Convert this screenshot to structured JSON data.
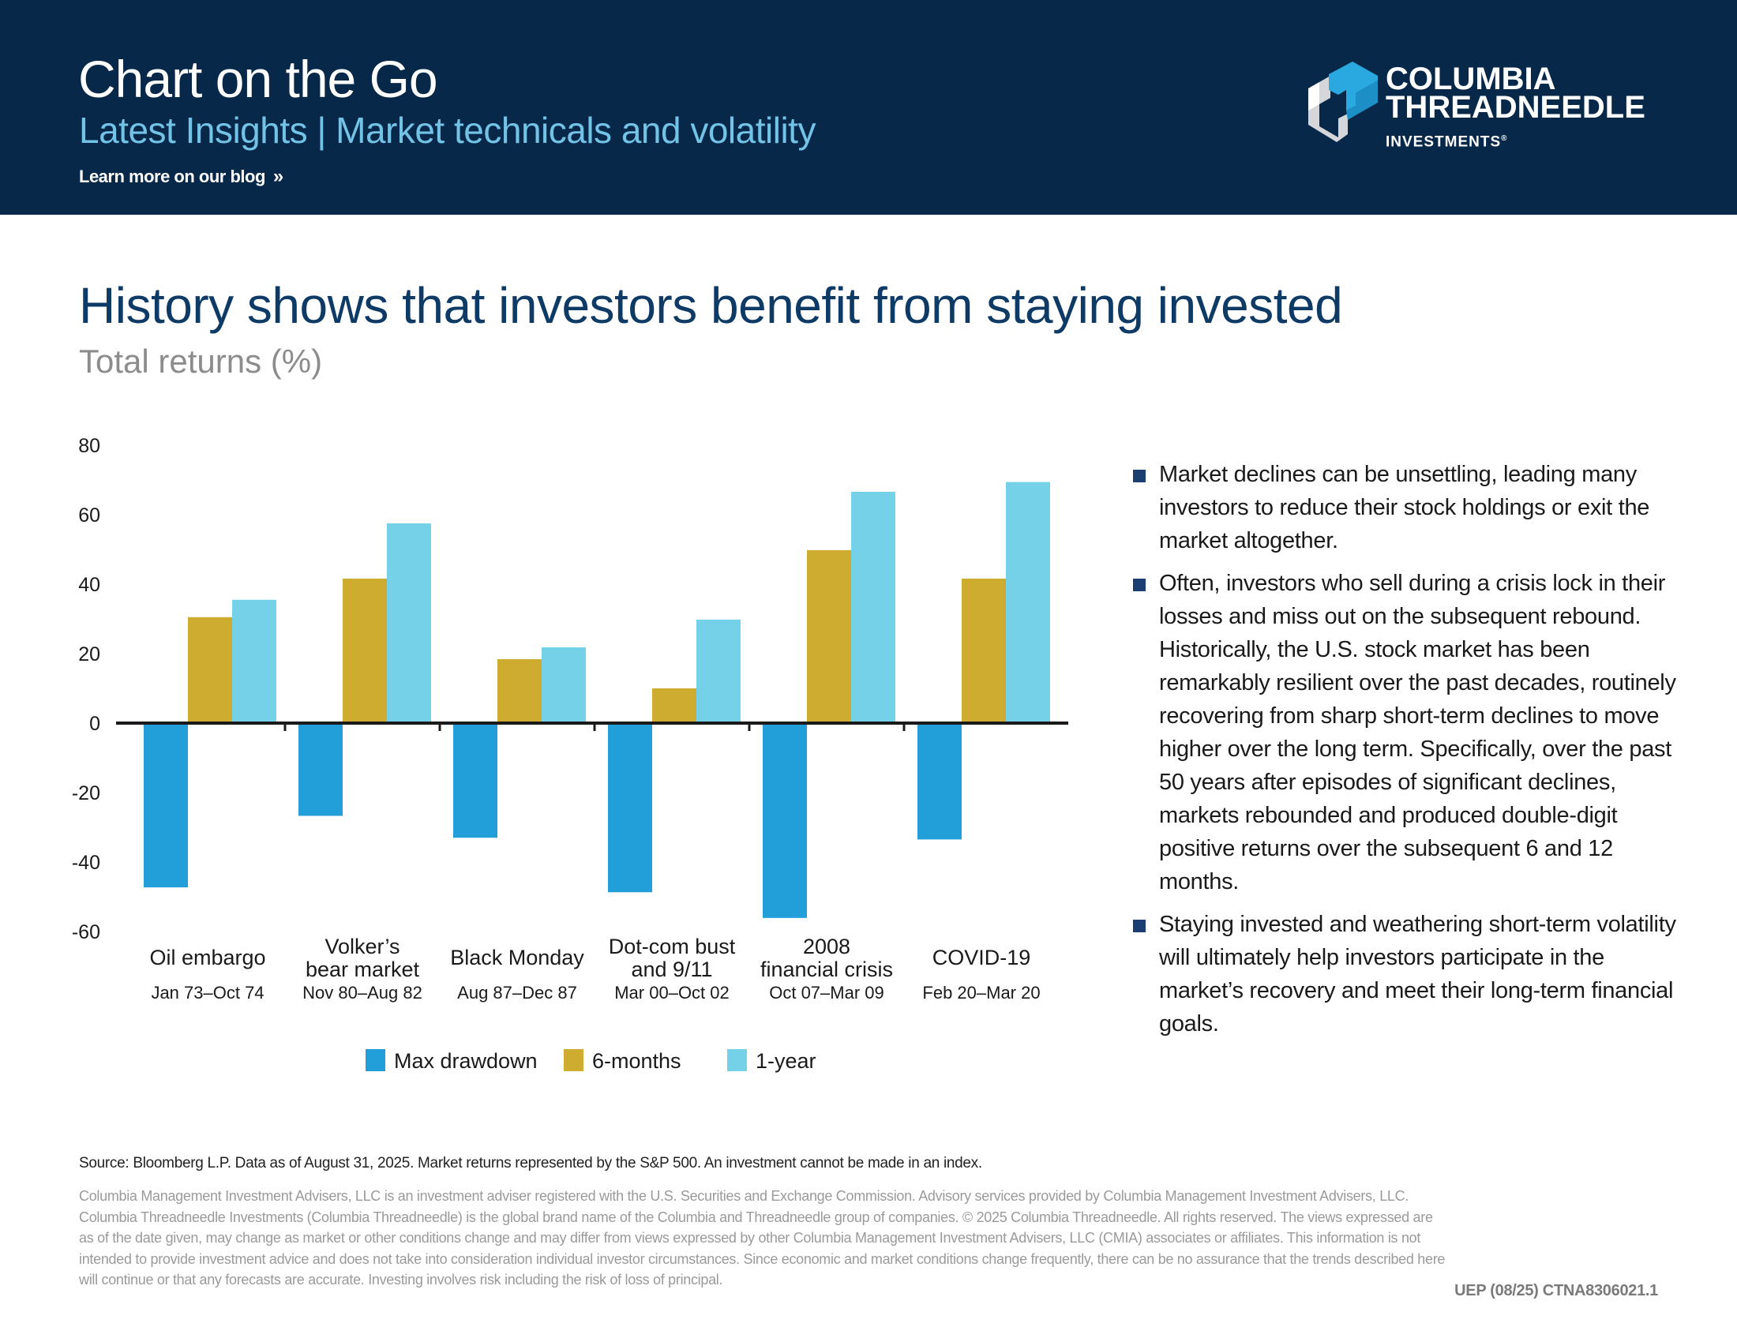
{
  "header": {
    "title": "Chart on the Go",
    "subtitle": "Latest Insights | Market technicals and volatility",
    "blog_link": "Learn more on our blog",
    "blog_link_icon": "»",
    "logo": {
      "line1": "COLUMBIA",
      "line2": "THREADNEEDLE",
      "line3": "INVESTMENTS",
      "registered": "®"
    }
  },
  "colors": {
    "header_bg": "#08284a",
    "subtitle": "#72c3e6",
    "title": "#0e3a66",
    "max_drawdown": "#229fd9",
    "six_months": "#ceac2f",
    "one_year": "#74d1e8",
    "bullet": "#1b3f73"
  },
  "main": {
    "title": "History shows that investors benefit from staying invested",
    "subtitle": "Total returns (%)"
  },
  "chart_data": {
    "type": "bar",
    "title": "History shows that investors benefit from staying invested",
    "ylabel": "Total returns (%)",
    "xlabel": "",
    "ylim": [
      -60,
      80
    ],
    "yticks": [
      80,
      60,
      40,
      20,
      0,
      -20,
      -40,
      -60
    ],
    "grid": false,
    "legend_position": "bottom-center",
    "categories": [
      {
        "name": [
          "Oil embargo"
        ],
        "period": "Jan 73–Oct 74"
      },
      {
        "name": [
          "Volker’s",
          "bear market"
        ],
        "period": "Nov 80–Aug 82"
      },
      {
        "name": [
          "Black Monday"
        ],
        "period": "Aug 87–Dec 87"
      },
      {
        "name": [
          "Dot-com bust",
          "and 9/11"
        ],
        "period": "Mar 00–Oct 02"
      },
      {
        "name": [
          "2008",
          "financial crisis"
        ],
        "period": "Oct 07–Mar 09"
      },
      {
        "name": [
          "COVID-19"
        ],
        "period": "Feb 20–Mar 20"
      }
    ],
    "series": [
      {
        "name": "Max drawdown",
        "color": "#229fd9",
        "values": [
          -47.3,
          -26.7,
          -33.0,
          -48.7,
          -56.1,
          -33.5
        ]
      },
      {
        "name": "6-months",
        "color": "#ceac2f",
        "values": [
          30.5,
          41.6,
          18.4,
          10.0,
          49.8,
          41.6
        ]
      },
      {
        "name": "1-year",
        "color": "#74d1e8",
        "values": [
          35.5,
          57.5,
          21.8,
          29.8,
          66.6,
          69.4
        ]
      }
    ]
  },
  "bullets": [
    "Market declines can be unsettling, leading many investors to reduce their stock holdings or exit the market altogether.",
    "Often, investors who sell during a crisis lock in their losses and miss out on the subsequent rebound. Historically, the U.S. stock market has been remarkably resilient over the past decades, routinely recovering from sharp short-term declines to move higher over the long term. Specifically, over the past 50 years after episodes of significant declines, markets rebounded and produced double-digit positive returns over the subsequent 6 and 12 months.",
    "Staying invested and weathering short-term volatility will ultimately help investors participate in the market’s recovery and meet their long-term financial goals."
  ],
  "footer": {
    "source": "Source: Bloomberg L.P. Data as of August 31, 2025. Market returns represented by the S&P 500. An investment cannot be made in an index.",
    "disclaimer_lines": [
      "Columbia Management Investment Advisers, LLC is an investment adviser registered with the U.S. Securities and Exchange Commission. Advisory services provided by Columbia Management Investment Advisers, LLC.",
      "Columbia Threadneedle Investments (Columbia Threadneedle) is the global brand name of the Columbia and Threadneedle group of companies. © 2025 Columbia Threadneedle. All rights reserved. The views expressed are",
      "as of the date given, may change as market or other conditions change and may differ from views expressed by other Columbia Management Investment Advisers, LLC (CMIA) associates or affiliates. This information is not",
      "intended to provide investment advice and does not take into consideration individual investor circumstances. Since economic and market conditions change frequently, there can be no assurance that the trends described here",
      "will continue or that any forecasts are accurate. Investing involves risk including the risk of loss of principal."
    ],
    "code": "UEP (08/25) CTNA8306021.1"
  }
}
